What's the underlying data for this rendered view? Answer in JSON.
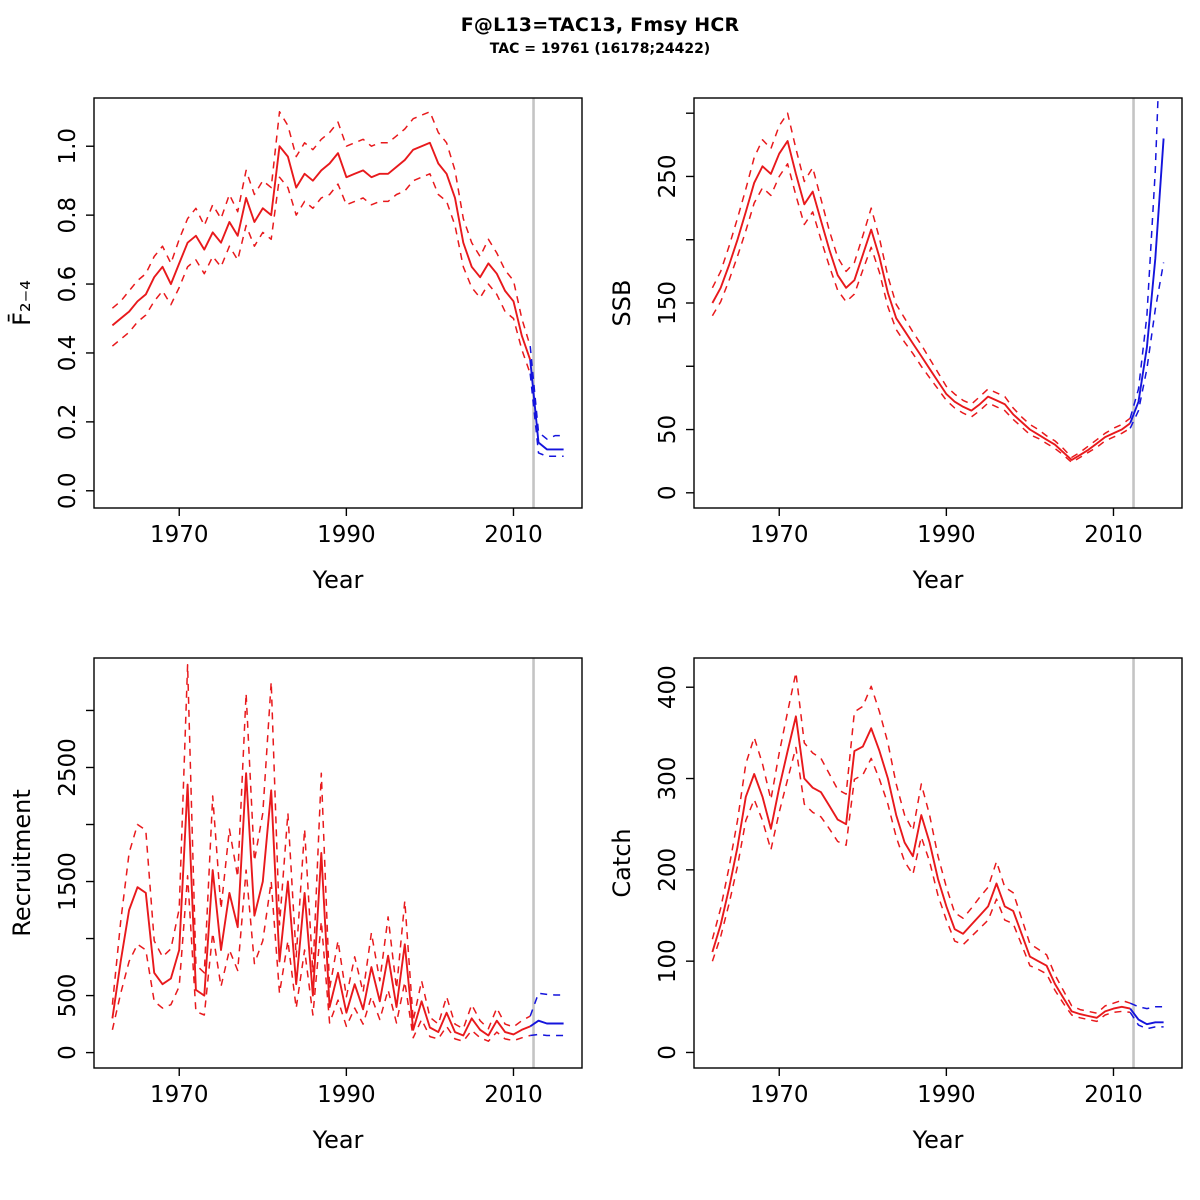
{
  "title": "F@L13=TAC13, Fmsy HCR",
  "subtitle": "TAC = 19761 (16178;24422)",
  "colors": {
    "historical": "#e8191c",
    "projection": "#1414dc",
    "divider": "#c4c4c4",
    "frame": "#000000"
  },
  "chart_data": [
    {
      "type": "line",
      "panel": "fishing-mortality",
      "xlabel": "Year",
      "ylabel": "F̄₂₋₄",
      "xlim": [
        1959.8,
        2018.2
      ],
      "ylim": [
        -0.05,
        1.14
      ],
      "xticks": [
        1970,
        1990,
        2010
      ],
      "yticks": [
        0,
        0.2,
        0.4,
        0.6,
        0.8,
        1.0
      ],
      "ytick_labels": [
        "0.0",
        "0.2",
        "0.4",
        "0.6",
        "0.8",
        "1.0"
      ],
      "vline": 2012.4,
      "grid": false,
      "legend": "none",
      "series": [
        {
          "name": "historical-median",
          "color": "red",
          "dash": false,
          "x0": 1962,
          "y": [
            0.48,
            0.5,
            0.52,
            0.55,
            0.57,
            0.62,
            0.65,
            0.6,
            0.66,
            0.72,
            0.74,
            0.7,
            0.75,
            0.72,
            0.78,
            0.74,
            0.85,
            0.78,
            0.82,
            0.8,
            1.0,
            0.97,
            0.88,
            0.92,
            0.9,
            0.93,
            0.95,
            0.98,
            0.91,
            0.92,
            0.93,
            0.91,
            0.92,
            0.92,
            0.94,
            0.96,
            0.99,
            1.0,
            1.01,
            0.95,
            0.92,
            0.85,
            0.72,
            0.65,
            0.62,
            0.66,
            0.63,
            0.58,
            0.55,
            0.45,
            0.38
          ]
        },
        {
          "name": "historical-lower",
          "color": "red",
          "dash": true,
          "x0": 1962,
          "y": [
            0.42,
            0.44,
            0.46,
            0.49,
            0.51,
            0.55,
            0.58,
            0.54,
            0.59,
            0.65,
            0.67,
            0.63,
            0.68,
            0.65,
            0.71,
            0.67,
            0.77,
            0.71,
            0.75,
            0.73,
            0.91,
            0.88,
            0.8,
            0.84,
            0.82,
            0.85,
            0.86,
            0.89,
            0.83,
            0.84,
            0.85,
            0.83,
            0.84,
            0.84,
            0.86,
            0.87,
            0.9,
            0.91,
            0.92,
            0.86,
            0.84,
            0.77,
            0.65,
            0.59,
            0.56,
            0.6,
            0.57,
            0.52,
            0.5,
            0.41,
            0.34
          ]
        },
        {
          "name": "historical-upper",
          "color": "red",
          "dash": true,
          "x0": 1962,
          "y": [
            0.53,
            0.55,
            0.58,
            0.61,
            0.63,
            0.68,
            0.71,
            0.66,
            0.73,
            0.79,
            0.82,
            0.77,
            0.83,
            0.79,
            0.86,
            0.81,
            0.93,
            0.86,
            0.9,
            0.88,
            1.1,
            1.06,
            0.97,
            1.01,
            0.99,
            1.02,
            1.04,
            1.07,
            1.0,
            1.01,
            1.02,
            1.0,
            1.01,
            1.01,
            1.03,
            1.05,
            1.08,
            1.09,
            1.1,
            1.04,
            1.01,
            0.93,
            0.79,
            0.72,
            0.68,
            0.73,
            0.69,
            0.64,
            0.61,
            0.5,
            0.42
          ]
        },
        {
          "name": "projection-median",
          "color": "blue",
          "dash": false,
          "x0": 2012,
          "y": [
            0.38,
            0.14,
            0.12,
            0.12,
            0.12
          ]
        },
        {
          "name": "projection-lower",
          "color": "blue",
          "dash": true,
          "x0": 2012,
          "y": [
            0.34,
            0.11,
            0.1,
            0.1,
            0.1
          ]
        },
        {
          "name": "projection-upper",
          "color": "blue",
          "dash": true,
          "x0": 2012,
          "y": [
            0.42,
            0.17,
            0.15,
            0.16,
            0.16
          ]
        }
      ]
    },
    {
      "type": "line",
      "panel": "ssb",
      "xlabel": "Year",
      "ylabel": "SSB",
      "xlim": [
        1959.8,
        2018.2
      ],
      "ylim": [
        -12,
        312
      ],
      "xticks": [
        1970,
        1990,
        2010
      ],
      "yticks": [
        0,
        50,
        100,
        150,
        200,
        250,
        300
      ],
      "ytick_labels": [
        "0",
        "50",
        "",
        "150",
        "",
        "250",
        ""
      ],
      "vline": 2012.4,
      "grid": false,
      "legend": "none",
      "series": [
        {
          "name": "historical-median",
          "color": "red",
          "dash": false,
          "x0": 1962,
          "y": [
            150,
            162,
            180,
            200,
            222,
            245,
            258,
            252,
            268,
            278,
            252,
            228,
            238,
            215,
            192,
            172,
            162,
            168,
            188,
            208,
            186,
            158,
            138,
            128,
            118,
            108,
            98,
            88,
            78,
            72,
            68,
            65,
            70,
            76,
            73,
            70,
            62,
            56,
            50,
            46,
            42,
            38,
            32,
            26,
            30,
            34,
            39,
            44,
            47,
            50,
            55
          ]
        },
        {
          "name": "historical-lower",
          "color": "red",
          "dash": true,
          "x0": 1962,
          "y": [
            140,
            151,
            168,
            187,
            207,
            229,
            241,
            235,
            250,
            260,
            235,
            212,
            222,
            200,
            179,
            160,
            151,
            157,
            176,
            194,
            174,
            147,
            129,
            119,
            110,
            100,
            91,
            82,
            73,
            67,
            63,
            60,
            65,
            71,
            68,
            65,
            58,
            52,
            46,
            43,
            39,
            35,
            30,
            24,
            28,
            32,
            36,
            41,
            44,
            47,
            51
          ]
        },
        {
          "name": "historical-upper",
          "color": "red",
          "dash": true,
          "x0": 1962,
          "y": [
            162,
            175,
            195,
            217,
            240,
            265,
            279,
            272,
            290,
            300,
            272,
            246,
            257,
            232,
            207,
            186,
            175,
            182,
            203,
            225,
            201,
            171,
            149,
            138,
            127,
            117,
            106,
            95,
            84,
            78,
            73,
            70,
            76,
            82,
            79,
            76,
            67,
            60,
            54,
            50,
            45,
            41,
            35,
            28,
            32,
            37,
            42,
            47,
            51,
            54,
            59
          ]
        },
        {
          "name": "projection-median",
          "color": "blue",
          "dash": false,
          "x0": 2012,
          "y": [
            55,
            72,
            115,
            185,
            280
          ]
        },
        {
          "name": "projection-lower",
          "color": "blue",
          "dash": true,
          "x0": 2012,
          "y": [
            51,
            65,
            98,
            145,
            182
          ]
        },
        {
          "name": "projection-upper",
          "color": "blue",
          "dash": true,
          "x0": 2012,
          "y": [
            59,
            82,
            140,
            255,
            430
          ]
        }
      ]
    },
    {
      "type": "line",
      "panel": "recruitment",
      "xlabel": "Year",
      "ylabel": "Recruitment",
      "xlim": [
        1959.8,
        2018.2
      ],
      "ylim": [
        -135,
        3460
      ],
      "xticks": [
        1970,
        1990,
        2010
      ],
      "yticks": [
        0,
        500,
        1000,
        1500,
        2000,
        2500,
        3000
      ],
      "ytick_labels": [
        "0",
        "500",
        "",
        "1500",
        "",
        "2500",
        ""
      ],
      "vline": 2012.4,
      "grid": false,
      "legend": "none",
      "series": [
        {
          "name": "historical-median",
          "color": "red",
          "dash": false,
          "x0": 1962,
          "y": [
            300,
            800,
            1250,
            1450,
            1400,
            700,
            600,
            650,
            900,
            2350,
            550,
            500,
            1600,
            900,
            1400,
            1100,
            2450,
            1200,
            1500,
            2300,
            800,
            1500,
            600,
            1400,
            500,
            1750,
            400,
            700,
            350,
            600,
            380,
            750,
            450,
            850,
            400,
            950,
            200,
            450,
            220,
            180,
            350,
            180,
            150,
            300,
            200,
            150,
            280,
            180,
            160,
            200,
            230
          ]
        },
        {
          "name": "historical-lower",
          "color": "red",
          "dash": true,
          "x0": 1962,
          "y": [
            200,
            520,
            800,
            950,
            900,
            450,
            390,
            420,
            580,
            1550,
            360,
            330,
            1050,
            580,
            900,
            720,
            1600,
            780,
            980,
            1500,
            520,
            980,
            390,
            900,
            330,
            1150,
            260,
            460,
            230,
            390,
            250,
            490,
            290,
            550,
            260,
            620,
            130,
            290,
            140,
            120,
            230,
            120,
            100,
            195,
            130,
            100,
            180,
            120,
            105,
            130,
            150
          ]
        },
        {
          "name": "historical-upper",
          "color": "red",
          "dash": true,
          "x0": 1962,
          "y": [
            420,
            1150,
            1750,
            2000,
            1950,
            980,
            840,
            910,
            1260,
            3400,
            770,
            700,
            2250,
            1260,
            1960,
            1540,
            3150,
            1680,
            2100,
            3250,
            1120,
            2100,
            840,
            1960,
            700,
            2450,
            560,
            980,
            490,
            840,
            530,
            1050,
            630,
            1190,
            560,
            1330,
            280,
            630,
            310,
            250,
            490,
            250,
            210,
            420,
            280,
            210,
            390,
            250,
            225,
            280,
            320
          ]
        },
        {
          "name": "projection-median",
          "color": "blue",
          "dash": false,
          "x0": 2012,
          "y": [
            230,
            280,
            255,
            255,
            255
          ]
        },
        {
          "name": "projection-lower",
          "color": "blue",
          "dash": true,
          "x0": 2012,
          "y": [
            150,
            160,
            150,
            150,
            150
          ]
        },
        {
          "name": "projection-upper",
          "color": "blue",
          "dash": true,
          "x0": 2012,
          "y": [
            320,
            520,
            510,
            505,
            505
          ]
        }
      ]
    },
    {
      "type": "line",
      "panel": "catch",
      "xlabel": "Year",
      "ylabel": "Catch",
      "xlim": [
        1959.8,
        2018.2
      ],
      "ylim": [
        -17,
        432
      ],
      "xticks": [
        1970,
        1990,
        2010
      ],
      "yticks": [
        0,
        100,
        200,
        300,
        400
      ],
      "ytick_labels": [
        "0",
        "100",
        "200",
        "300",
        "400"
      ],
      "vline": 2012.4,
      "grid": false,
      "legend": "none",
      "series": [
        {
          "name": "historical-median",
          "color": "red",
          "dash": false,
          "x0": 1962,
          "y": [
            110,
            140,
            180,
            225,
            280,
            305,
            280,
            245,
            290,
            330,
            368,
            300,
            290,
            285,
            270,
            255,
            250,
            330,
            335,
            355,
            330,
            300,
            260,
            230,
            215,
            260,
            230,
            190,
            160,
            135,
            130,
            140,
            150,
            160,
            185,
            160,
            155,
            130,
            105,
            100,
            95,
            75,
            60,
            45,
            42,
            40,
            38,
            45,
            48,
            50,
            48
          ]
        },
        {
          "name": "historical-lower",
          "color": "red",
          "dash": true,
          "x0": 1962,
          "y": [
            100,
            127,
            163,
            204,
            254,
            277,
            254,
            222,
            263,
            299,
            334,
            272,
            263,
            258,
            245,
            231,
            227,
            299,
            304,
            322,
            299,
            272,
            236,
            209,
            195,
            236,
            209,
            172,
            145,
            122,
            118,
            127,
            136,
            145,
            168,
            145,
            141,
            118,
            95,
            91,
            86,
            68,
            54,
            41,
            38,
            36,
            34,
            41,
            44,
            45,
            44
          ]
        },
        {
          "name": "historical-upper",
          "color": "red",
          "dash": true,
          "x0": 1962,
          "y": [
            124,
            158,
            203,
            254,
            316,
            345,
            316,
            277,
            328,
            373,
            416,
            339,
            328,
            322,
            305,
            288,
            283,
            373,
            379,
            401,
            373,
            339,
            294,
            260,
            243,
            294,
            260,
            215,
            181,
            153,
            147,
            158,
            170,
            181,
            209,
            181,
            175,
            147,
            119,
            113,
            107,
            85,
            68,
            51,
            47,
            45,
            43,
            51,
            54,
            57,
            54
          ]
        },
        {
          "name": "projection-median",
          "color": "blue",
          "dash": false,
          "x0": 2012,
          "y": [
            48,
            36,
            31,
            33,
            33
          ]
        },
        {
          "name": "projection-lower",
          "color": "blue",
          "dash": true,
          "x0": 2012,
          "y": [
            44,
            30,
            26,
            28,
            28
          ]
        },
        {
          "name": "projection-upper",
          "color": "blue",
          "dash": true,
          "x0": 2012,
          "y": [
            54,
            50,
            48,
            50,
            50
          ]
        }
      ]
    }
  ]
}
